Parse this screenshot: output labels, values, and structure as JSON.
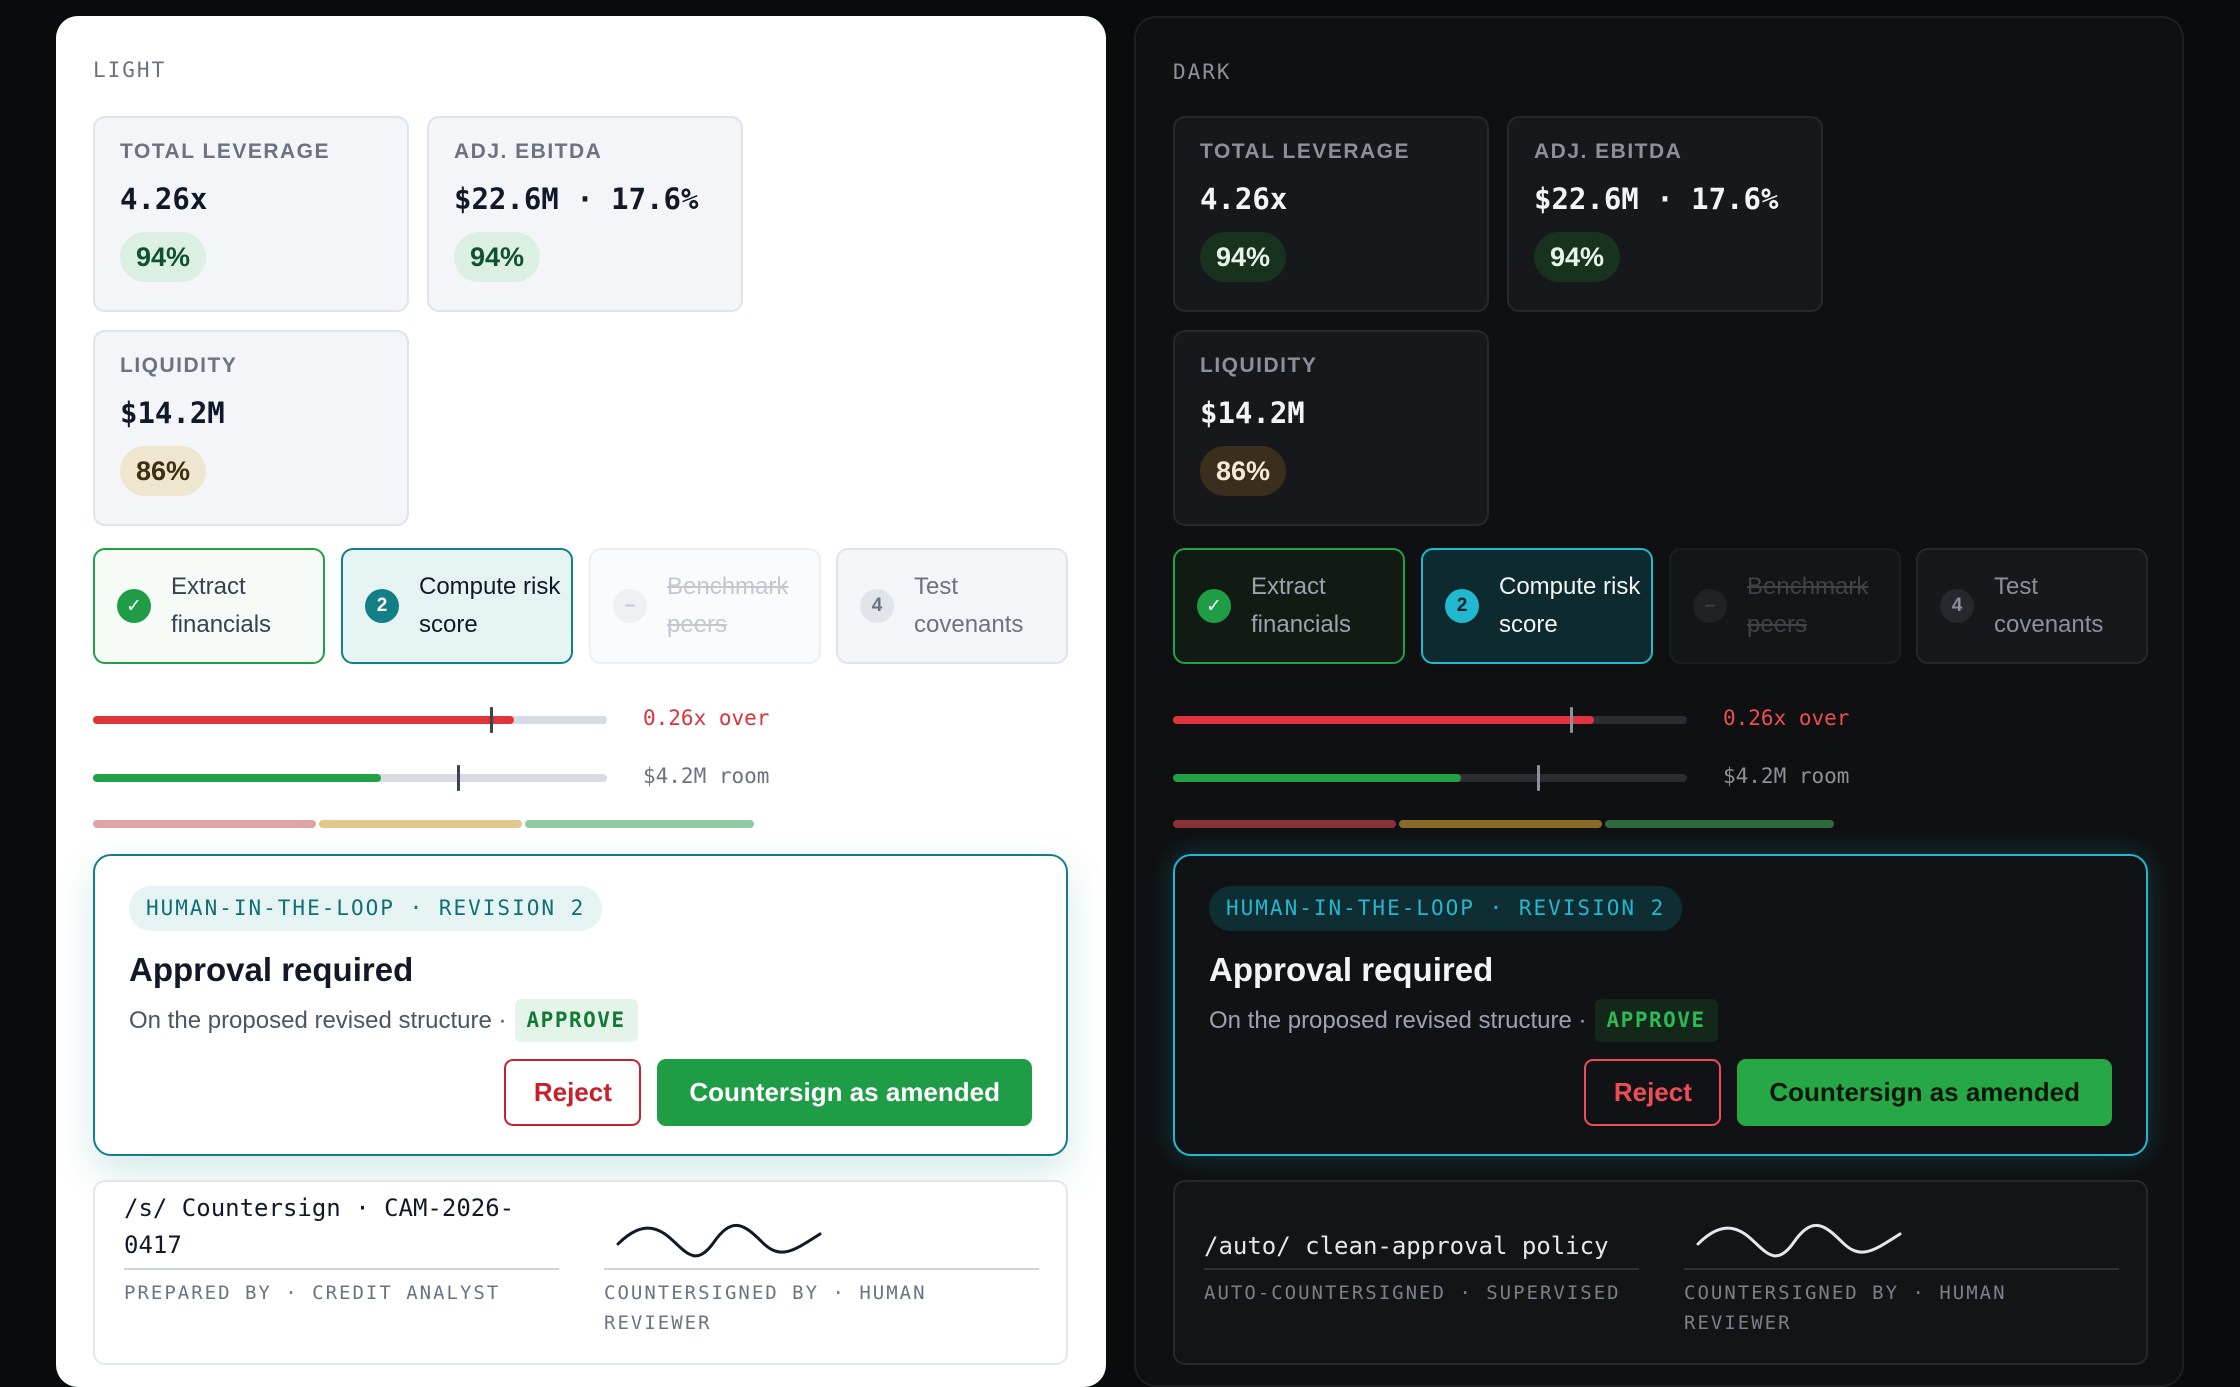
{
  "panels": {
    "light": {
      "label": "LIGHT",
      "signature": {
        "left_text": "/s/ Countersign · CAM-2026-0417",
        "left_caption": "PREPARED BY · CREDIT ANALYST",
        "right_caption": "COUNTERSIGNED BY · HUMAN REVIEWER"
      }
    },
    "dark": {
      "label": "DARK",
      "signature": {
        "left_text": "/auto/ clean-approval policy",
        "left_caption": "AUTO-COUNTERSIGNED · SUPERVISED",
        "right_caption": "COUNTERSIGNED BY · HUMAN REVIEWER"
      }
    }
  },
  "metrics": [
    {
      "label": "TOTAL LEVERAGE",
      "value": "4.26x",
      "confidence": "94%",
      "tone": "green"
    },
    {
      "label": "ADJ. EBITDA",
      "value": "$22.6M · 17.6%",
      "confidence": "94%",
      "tone": "green"
    },
    {
      "label": "LIQUIDITY",
      "value": "$14.2M",
      "confidence": "86%",
      "tone": "amber"
    }
  ],
  "steps": [
    {
      "icon": "✓",
      "label": "Extract financials",
      "state": "done"
    },
    {
      "icon": "2",
      "label": "Compute risk score",
      "state": "active"
    },
    {
      "icon": "–",
      "label": "Benchmark peers",
      "state": "skipped"
    },
    {
      "icon": "4",
      "label": "Test covenants",
      "state": "pending"
    }
  ],
  "gauges": {
    "leverage": {
      "fill": 0.82,
      "marker": 0.775,
      "note": "0.26x over",
      "color": "#e0343c"
    },
    "liquidity": {
      "fill": 0.56,
      "marker": 0.71,
      "note": "$4.2M room",
      "color": "#22a046"
    }
  },
  "risk_band": {
    "segments": [
      0.34,
      0.31,
      0.35
    ],
    "light_colors": [
      "#e0a3a8",
      "#e3c68c",
      "#8fcba2"
    ],
    "dark_colors": [
      "#8a3237",
      "#8a6a28",
      "#2f6a3f"
    ]
  },
  "approval": {
    "badge": "HUMAN-IN-THE-LOOP · REVISION 2",
    "title": "Approval required",
    "subtitle": "On the proposed revised structure ·",
    "tag": "APPROVE",
    "reject_label": "Reject",
    "countersign_label": "Countersign as amended"
  }
}
